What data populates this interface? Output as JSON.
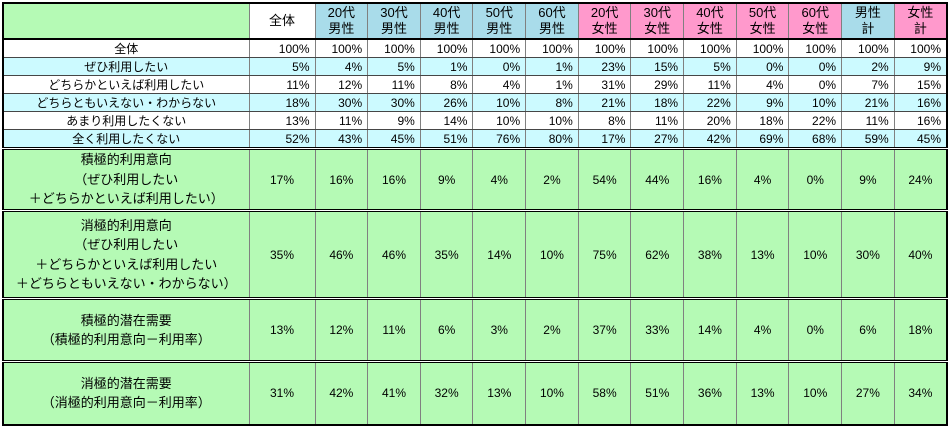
{
  "colors": {
    "corner_green": "#b5fab5",
    "group_green": "#b5fab5",
    "male_blue": "#a9dcea",
    "female_pink": "#ff99cc",
    "row_cyan": "#ccfaff",
    "row_white": "#ffffff",
    "grid_gray": "#808080",
    "border_black": "#000000"
  },
  "chart_data": {
    "type": "table",
    "corner_label": "",
    "columns": [
      {
        "label": "全体",
        "tone": "plain"
      },
      {
        "label": "20代\n男性",
        "tone": "male"
      },
      {
        "label": "30代\n男性",
        "tone": "male"
      },
      {
        "label": "40代\n男性",
        "tone": "male"
      },
      {
        "label": "50代\n男性",
        "tone": "male"
      },
      {
        "label": "60代\n男性",
        "tone": "male"
      },
      {
        "label": "20代\n女性",
        "tone": "female"
      },
      {
        "label": "30代\n女性",
        "tone": "female"
      },
      {
        "label": "40代\n女性",
        "tone": "female"
      },
      {
        "label": "50代\n女性",
        "tone": "female"
      },
      {
        "label": "60代\n女性",
        "tone": "female"
      },
      {
        "label": "男性\n計",
        "tone": "male"
      },
      {
        "label": "女性\n計",
        "tone": "female"
      }
    ],
    "rows": [
      {
        "label": "全体",
        "shade": "plain",
        "values": [
          "100%",
          "100%",
          "100%",
          "100%",
          "100%",
          "100%",
          "100%",
          "100%",
          "100%",
          "100%",
          "100%",
          "100%",
          "100%"
        ]
      },
      {
        "label": "ぜひ利用したい",
        "shade": "cyan",
        "values": [
          "5%",
          "4%",
          "5%",
          "1%",
          "0%",
          "1%",
          "23%",
          "15%",
          "5%",
          "0%",
          "0%",
          "2%",
          "9%"
        ]
      },
      {
        "label": "どちらかといえば利用したい",
        "shade": "plain",
        "values": [
          "11%",
          "12%",
          "11%",
          "8%",
          "4%",
          "1%",
          "31%",
          "29%",
          "11%",
          "4%",
          "0%",
          "7%",
          "15%"
        ]
      },
      {
        "label": "どちらともいえない・わからない",
        "shade": "cyan",
        "values": [
          "18%",
          "30%",
          "30%",
          "26%",
          "10%",
          "8%",
          "21%",
          "18%",
          "22%",
          "9%",
          "10%",
          "21%",
          "16%"
        ]
      },
      {
        "label": "あまり利用したくない",
        "shade": "plain",
        "values": [
          "13%",
          "11%",
          "9%",
          "14%",
          "10%",
          "10%",
          "8%",
          "11%",
          "20%",
          "18%",
          "22%",
          "11%",
          "16%"
        ]
      },
      {
        "label": "全く利用したくない",
        "shade": "cyan",
        "values": [
          "52%",
          "43%",
          "45%",
          "51%",
          "76%",
          "80%",
          "17%",
          "27%",
          "42%",
          "69%",
          "68%",
          "59%",
          "45%"
        ]
      }
    ],
    "groups": [
      {
        "label": "積極的利用意向\n（ぜひ利用したい\n＋どちらかといえば利用したい）",
        "values": [
          "17%",
          "16%",
          "16%",
          "9%",
          "4%",
          "2%",
          "54%",
          "44%",
          "16%",
          "4%",
          "0%",
          "9%",
          "24%"
        ]
      },
      {
        "label": "消極的利用意向\n（ぜひ利用したい\n＋どちらかといえば利用したい\n＋どちらともいえない・わからない）",
        "values": [
          "35%",
          "46%",
          "46%",
          "35%",
          "14%",
          "10%",
          "75%",
          "62%",
          "38%",
          "13%",
          "10%",
          "30%",
          "40%"
        ]
      },
      {
        "label": "積極的潜在需要\n（積極的利用意向－利用率）",
        "values": [
          "13%",
          "12%",
          "11%",
          "6%",
          "3%",
          "2%",
          "37%",
          "33%",
          "14%",
          "4%",
          "0%",
          "6%",
          "18%"
        ]
      },
      {
        "label": "消極的潜在需要\n（消極的利用意向－利用率）",
        "values": [
          "31%",
          "42%",
          "41%",
          "32%",
          "13%",
          "10%",
          "58%",
          "51%",
          "36%",
          "13%",
          "10%",
          "27%",
          "34%"
        ]
      }
    ]
  }
}
